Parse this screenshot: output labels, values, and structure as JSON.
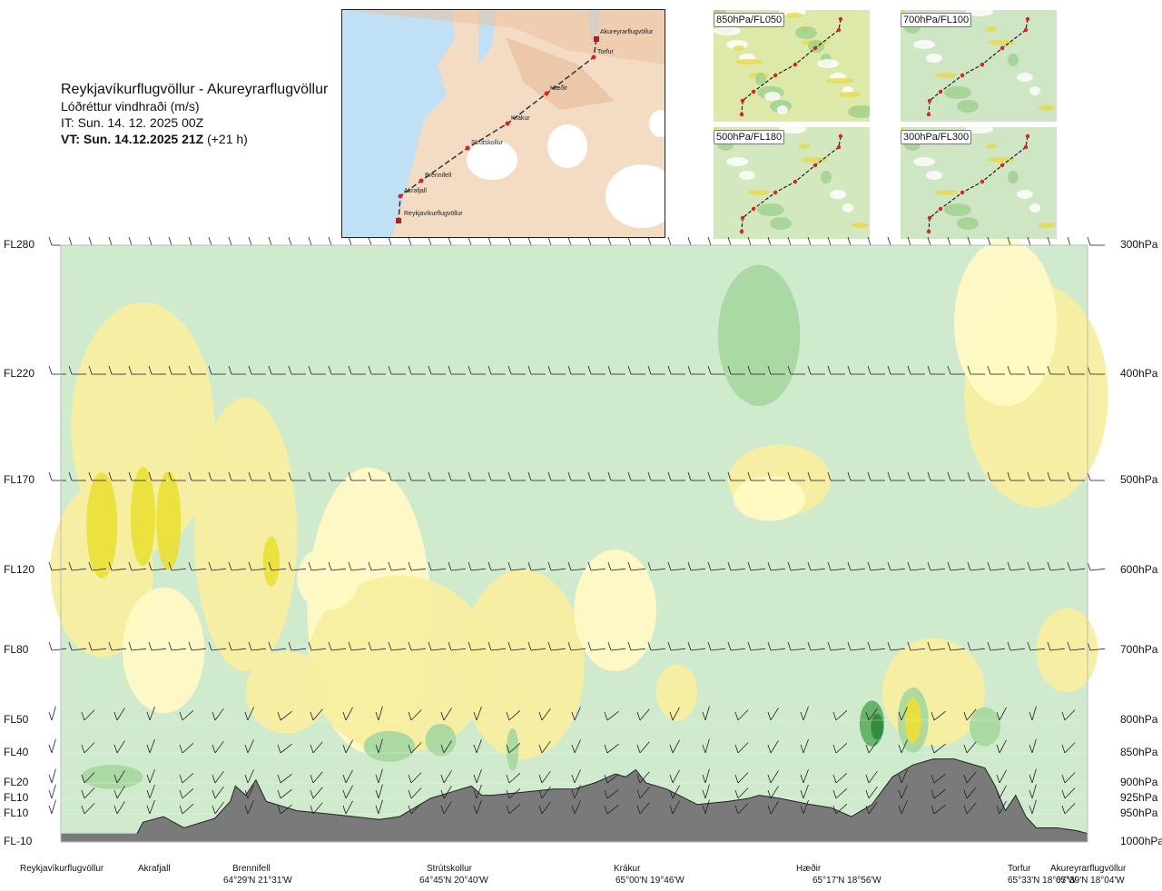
{
  "header": {
    "title": "Reykjavíkurflugvöllur - Akureyrarflugvöllur",
    "subtitle": "Lóðréttur vindhraði (m/s)",
    "issue_time": "IT: Sun. 14. 12. 2025 00Z",
    "valid_time": "VT: Sun. 14.12.2025 21Z",
    "lead": "(+21 h)"
  },
  "map": {
    "labels": [
      "Akureyrarflugvöllur",
      "Torfur",
      "Hæðir",
      "Krákur",
      "Strútskollur",
      "Brennifell",
      "Akrafjall",
      "Reykjavíkurflugvöllur"
    ]
  },
  "thumbnails": [
    {
      "label": "850hPa/FL050"
    },
    {
      "label": "700hPa/FL100"
    },
    {
      "label": "500hPa/FL180"
    },
    {
      "label": "300hPa/FL300"
    }
  ],
  "chart_data": {
    "type": "heatmap",
    "title": "Reykjavíkurflugvöllur - Akureyrarflugvöllur",
    "quantity": "Lóðréttur vindhraði (m/s)",
    "left_axis_flight_levels": [
      {
        "label": "FL280",
        "hpa": 300
      },
      {
        "label": "FL220",
        "hpa": 400
      },
      {
        "label": "FL170",
        "hpa": 500
      },
      {
        "label": "FL120",
        "hpa": 600
      },
      {
        "label": "FL80",
        "hpa": 700
      },
      {
        "label": "FL50",
        "hpa": 800
      },
      {
        "label": "FL40",
        "hpa": 850
      },
      {
        "label": "FL20",
        "hpa": 900
      },
      {
        "label": "FL10",
        "hpa": 925
      },
      {
        "label": "FL10",
        "hpa": 950
      },
      {
        "label": "FL-10",
        "hpa": 1000
      }
    ],
    "right_axis_pressure": [
      "300hPa",
      "400hPa",
      "500hPa",
      "600hPa",
      "700hPa",
      "800hPa",
      "850hPa",
      "900hPa",
      "925hPa",
      "950hPa",
      "1000hPa"
    ],
    "stations": [
      {
        "name": "Reykjavíkurflugvöllur",
        "coord": "",
        "dist": 0.0
      },
      {
        "name": "Akrafjall",
        "coord": "",
        "dist": 0.085
      },
      {
        "name": "Brennifell",
        "coord": "64°29'N 21°31'W",
        "dist": 0.17
      },
      {
        "name": "Strútskollur",
        "coord": "64°45'N 20°40'W",
        "dist": 0.37
      },
      {
        "name": "Krákur",
        "coord": "65°00'N 19°46'W",
        "dist": 0.54
      },
      {
        "name": "Hæðir",
        "coord": "65°17'N 18°56'W",
        "dist": 0.72
      },
      {
        "name": "Torfur",
        "coord": "65°33'N 18°07'W",
        "dist": 0.925
      },
      {
        "name": "Akureyrarflugvöllur",
        "coord": "65°39'N 18°04'W",
        "dist": 1.0
      }
    ],
    "terrain_top_hpa": [
      [
        0.0,
        1000
      ],
      [
        0.07,
        1000
      ],
      [
        0.08,
        965
      ],
      [
        0.1,
        955
      ],
      [
        0.12,
        975
      ],
      [
        0.15,
        958
      ],
      [
        0.165,
        930
      ],
      [
        0.17,
        905
      ],
      [
        0.18,
        920
      ],
      [
        0.19,
        895
      ],
      [
        0.2,
        930
      ],
      [
        0.23,
        945
      ],
      [
        0.26,
        950
      ],
      [
        0.31,
        960
      ],
      [
        0.33,
        955
      ],
      [
        0.36,
        925
      ],
      [
        0.38,
        915
      ],
      [
        0.4,
        905
      ],
      [
        0.41,
        920
      ],
      [
        0.42,
        920
      ],
      [
        0.45,
        915
      ],
      [
        0.48,
        910
      ],
      [
        0.5,
        910
      ],
      [
        0.52,
        900
      ],
      [
        0.54,
        885
      ],
      [
        0.55,
        890
      ],
      [
        0.56,
        878
      ],
      [
        0.57,
        900
      ],
      [
        0.59,
        910
      ],
      [
        0.62,
        935
      ],
      [
        0.65,
        930
      ],
      [
        0.67,
        925
      ],
      [
        0.68,
        920
      ],
      [
        0.7,
        925
      ],
      [
        0.73,
        935
      ],
      [
        0.75,
        940
      ],
      [
        0.77,
        955
      ],
      [
        0.79,
        935
      ],
      [
        0.81,
        890
      ],
      [
        0.83,
        870
      ],
      [
        0.85,
        860
      ],
      [
        0.87,
        860
      ],
      [
        0.9,
        875
      ],
      [
        0.91,
        905
      ],
      [
        0.92,
        945
      ],
      [
        0.93,
        920
      ],
      [
        0.94,
        955
      ],
      [
        0.95,
        975
      ],
      [
        0.97,
        975
      ],
      [
        0.99,
        980
      ],
      [
        1.0,
        985
      ]
    ],
    "wind_barb_levels_hpa": [
      300,
      400,
      500,
      600,
      700,
      800,
      850,
      900,
      925,
      950
    ],
    "colorbar": [
      "#2e8b3a",
      "#61b066",
      "#a8d8a0",
      "#cfeacd",
      "#ffffff",
      "#fff9c4",
      "#f7eea0",
      "#eadf3a"
    ]
  }
}
